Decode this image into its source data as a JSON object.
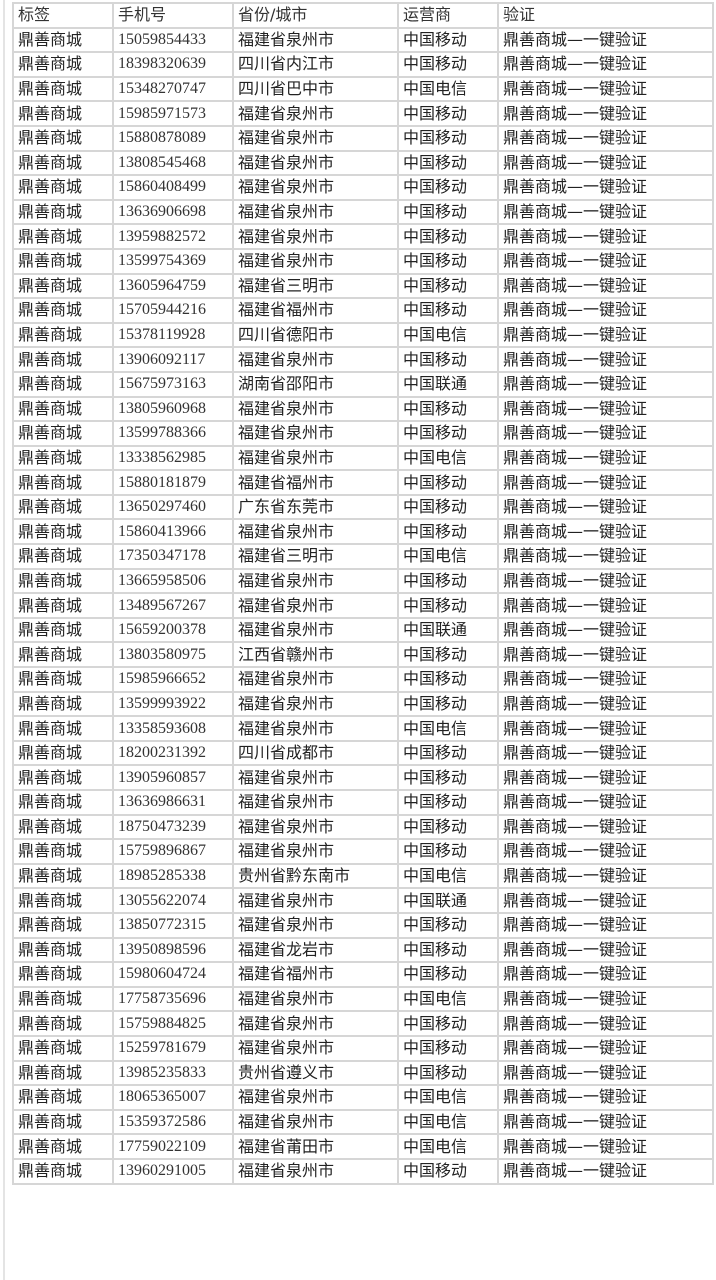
{
  "headers": [
    "标签",
    "手机号",
    "省份/城市",
    "运营商",
    "验证"
  ],
  "rows": [
    [
      "鼎善商城",
      "15059854433",
      "福建省泉州市",
      "中国移动",
      "鼎善商城—一键验证"
    ],
    [
      "鼎善商城",
      "18398320639",
      "四川省内江市",
      "中国移动",
      "鼎善商城—一键验证"
    ],
    [
      "鼎善商城",
      "15348270747",
      "四川省巴中市",
      "中国电信",
      "鼎善商城—一键验证"
    ],
    [
      "鼎善商城",
      "15985971573",
      "福建省泉州市",
      "中国移动",
      "鼎善商城—一键验证"
    ],
    [
      "鼎善商城",
      "15880878089",
      "福建省泉州市",
      "中国移动",
      "鼎善商城—一键验证"
    ],
    [
      "鼎善商城",
      "13808545468",
      "福建省泉州市",
      "中国移动",
      "鼎善商城—一键验证"
    ],
    [
      "鼎善商城",
      "15860408499",
      "福建省泉州市",
      "中国移动",
      "鼎善商城—一键验证"
    ],
    [
      "鼎善商城",
      "13636906698",
      "福建省泉州市",
      "中国移动",
      "鼎善商城—一键验证"
    ],
    [
      "鼎善商城",
      "13959882572",
      "福建省泉州市",
      "中国移动",
      "鼎善商城—一键验证"
    ],
    [
      "鼎善商城",
      "13599754369",
      "福建省泉州市",
      "中国移动",
      "鼎善商城—一键验证"
    ],
    [
      "鼎善商城",
      "13605964759",
      "福建省三明市",
      "中国移动",
      "鼎善商城—一键验证"
    ],
    [
      "鼎善商城",
      "15705944216",
      "福建省福州市",
      "中国移动",
      "鼎善商城—一键验证"
    ],
    [
      "鼎善商城",
      "15378119928",
      "四川省德阳市",
      "中国电信",
      "鼎善商城—一键验证"
    ],
    [
      "鼎善商城",
      "13906092117",
      "福建省泉州市",
      "中国移动",
      "鼎善商城—一键验证"
    ],
    [
      "鼎善商城",
      "15675973163",
      "湖南省邵阳市",
      "中国联通",
      "鼎善商城—一键验证"
    ],
    [
      "鼎善商城",
      "13805960968",
      "福建省泉州市",
      "中国移动",
      "鼎善商城—一键验证"
    ],
    [
      "鼎善商城",
      "13599788366",
      "福建省泉州市",
      "中国移动",
      "鼎善商城—一键验证"
    ],
    [
      "鼎善商城",
      "13338562985",
      "福建省泉州市",
      "中国电信",
      "鼎善商城—一键验证"
    ],
    [
      "鼎善商城",
      "15880181879",
      "福建省福州市",
      "中国移动",
      "鼎善商城—一键验证"
    ],
    [
      "鼎善商城",
      "13650297460",
      "广东省东莞市",
      "中国移动",
      "鼎善商城—一键验证"
    ],
    [
      "鼎善商城",
      "15860413966",
      "福建省泉州市",
      "中国移动",
      "鼎善商城—一键验证"
    ],
    [
      "鼎善商城",
      "17350347178",
      "福建省三明市",
      "中国电信",
      "鼎善商城—一键验证"
    ],
    [
      "鼎善商城",
      "13665958506",
      "福建省泉州市",
      "中国移动",
      "鼎善商城—一键验证"
    ],
    [
      "鼎善商城",
      "13489567267",
      "福建省泉州市",
      "中国移动",
      "鼎善商城—一键验证"
    ],
    [
      "鼎善商城",
      "15659200378",
      "福建省泉州市",
      "中国联通",
      "鼎善商城—一键验证"
    ],
    [
      "鼎善商城",
      "13803580975",
      "江西省赣州市",
      "中国移动",
      "鼎善商城—一键验证"
    ],
    [
      "鼎善商城",
      "15985966652",
      "福建省泉州市",
      "中国移动",
      "鼎善商城—一键验证"
    ],
    [
      "鼎善商城",
      "13599993922",
      "福建省泉州市",
      "中国移动",
      "鼎善商城—一键验证"
    ],
    [
      "鼎善商城",
      "13358593608",
      "福建省泉州市",
      "中国电信",
      "鼎善商城—一键验证"
    ],
    [
      "鼎善商城",
      "18200231392",
      "四川省成都市",
      "中国移动",
      "鼎善商城—一键验证"
    ],
    [
      "鼎善商城",
      "13905960857",
      "福建省泉州市",
      "中国移动",
      "鼎善商城—一键验证"
    ],
    [
      "鼎善商城",
      "13636986631",
      "福建省泉州市",
      "中国移动",
      "鼎善商城—一键验证"
    ],
    [
      "鼎善商城",
      "18750473239",
      "福建省泉州市",
      "中国移动",
      "鼎善商城—一键验证"
    ],
    [
      "鼎善商城",
      "15759896867",
      "福建省泉州市",
      "中国移动",
      "鼎善商城—一键验证"
    ],
    [
      "鼎善商城",
      "18985285338",
      "贵州省黔东南市",
      "中国电信",
      "鼎善商城—一键验证"
    ],
    [
      "鼎善商城",
      "13055622074",
      "福建省泉州市",
      "中国联通",
      "鼎善商城—一键验证"
    ],
    [
      "鼎善商城",
      "13850772315",
      "福建省泉州市",
      "中国移动",
      "鼎善商城—一键验证"
    ],
    [
      "鼎善商城",
      "13950898596",
      "福建省龙岩市",
      "中国移动",
      "鼎善商城—一键验证"
    ],
    [
      "鼎善商城",
      "15980604724",
      "福建省福州市",
      "中国移动",
      "鼎善商城—一键验证"
    ],
    [
      "鼎善商城",
      "17758735696",
      "福建省泉州市",
      "中国电信",
      "鼎善商城—一键验证"
    ],
    [
      "鼎善商城",
      "15759884825",
      "福建省泉州市",
      "中国移动",
      "鼎善商城—一键验证"
    ],
    [
      "鼎善商城",
      "15259781679",
      "福建省泉州市",
      "中国移动",
      "鼎善商城—一键验证"
    ],
    [
      "鼎善商城",
      "13985235833",
      "贵州省遵义市",
      "中国移动",
      "鼎善商城—一键验证"
    ],
    [
      "鼎善商城",
      "18065365007",
      "福建省泉州市",
      "中国电信",
      "鼎善商城—一键验证"
    ],
    [
      "鼎善商城",
      "15359372586",
      "福建省泉州市",
      "中国电信",
      "鼎善商城—一键验证"
    ],
    [
      "鼎善商城",
      "17759022109",
      "福建省莆田市",
      "中国电信",
      "鼎善商城—一键验证"
    ],
    [
      "鼎善商城",
      "13960291005",
      "福建省泉州市",
      "中国移动",
      "鼎善商城—一键验证"
    ]
  ]
}
